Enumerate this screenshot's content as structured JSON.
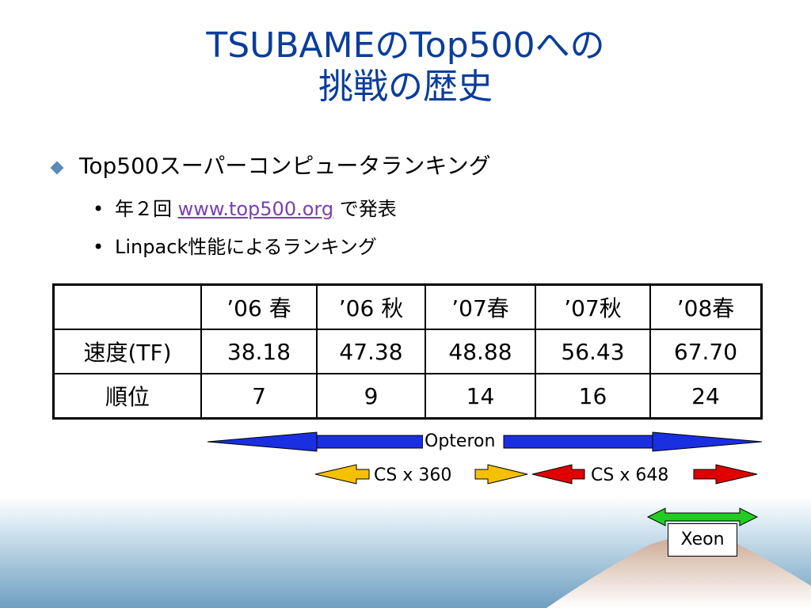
{
  "title": {
    "line1": "TSUBAMEのTop500への",
    "line2": "挑戦の歴史"
  },
  "bullet": {
    "text": "Top500スーパーコンピュータランキング",
    "sub1_prefix": "年２回",
    "sub1_link": "www.top500.org",
    "sub1_suffix": "で発表",
    "sub2": "Linpack性能によるランキング"
  },
  "table": {
    "headers": [
      "",
      "’06 春",
      "’06 秋",
      "’07春",
      "’07秋",
      "’08春"
    ],
    "rows": [
      {
        "label": "速度(TF)",
        "values": [
          "38.18",
          "47.38",
          "48.88",
          "56.43",
          "67.70"
        ]
      },
      {
        "label": "順位",
        "values": [
          "7",
          "9",
          "14",
          "16",
          "24"
        ]
      }
    ]
  },
  "arrows": {
    "opteron": "Opteron",
    "cs360": "CS x 360",
    "cs648": "CS x 648",
    "xeon": "Xeon"
  },
  "colors": {
    "title": "#0a3d9c",
    "opteron_arrow": "#1a2fe0",
    "cs360_arrow": "#f5c000",
    "cs648_arrow": "#e00000",
    "xeon_arrow": "#22cc22",
    "link": "#7a3fb0"
  }
}
